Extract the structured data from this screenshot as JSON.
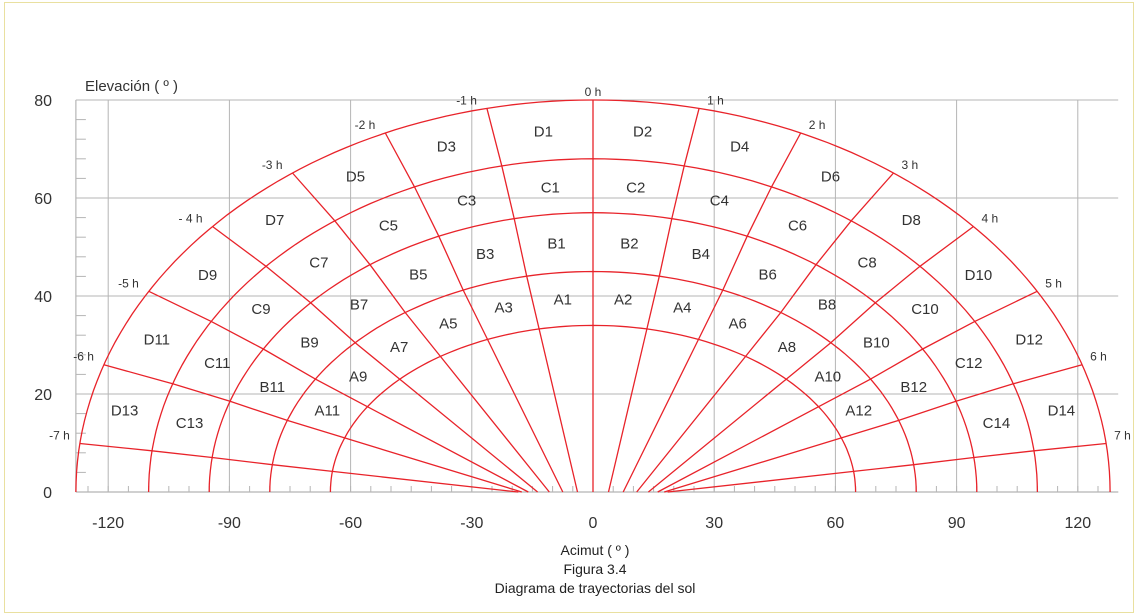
{
  "chart_data": {
    "type": "sun-path-diagram",
    "ylabel": "Elevación ( º )",
    "xlabel": "Acimut ( º )",
    "caption_figure": "Figura 3.4",
    "caption_title": "Diagrama de trayectorias del sol",
    "x_ticks": [
      "-120",
      "-90",
      "-60",
      "-30",
      "0",
      "30",
      "60",
      "90",
      "120"
    ],
    "y_ticks": [
      "0",
      "20",
      "40",
      "60",
      "80"
    ],
    "xlim": [
      -130,
      130
    ],
    "ylim": [
      0,
      80
    ],
    "grid": true,
    "arc_peaks_elevation": [
      34,
      45,
      57,
      68,
      80
    ],
    "arc_base_azimuth": [
      65,
      80,
      95,
      110,
      128
    ],
    "hour_labels": [
      "-7 h",
      "-6 h",
      "-5 h",
      "- 4 h",
      "-3 h",
      "-2 h",
      "-1 h",
      "0 h",
      "1 h",
      "2 h",
      "3 h",
      "4 h",
      "5 h",
      "6 h",
      "7 h"
    ],
    "hour_angles": [
      -7,
      -6,
      -5,
      -4,
      -3,
      -2,
      -1,
      0,
      1,
      2,
      3,
      4,
      5,
      6,
      7
    ],
    "cell_labels": {
      "A": [
        "A1",
        "A2",
        "A3",
        "A4",
        "A5",
        "A6",
        "A7",
        "A8",
        "A9",
        "A10",
        "A11",
        "A12"
      ],
      "B": [
        "B1",
        "B2",
        "B3",
        "B4",
        "B5",
        "B6",
        "B7",
        "B8",
        "B9",
        "B10",
        "B11",
        "B12"
      ],
      "C": [
        "C1",
        "C2",
        "C3",
        "C4",
        "C5",
        "C6",
        "C7",
        "C8",
        "C9",
        "C10",
        "C11",
        "C12",
        "C13",
        "C14"
      ],
      "D": [
        "D1",
        "D2",
        "D3",
        "D4",
        "D5",
        "D6",
        "D7",
        "D8",
        "D9",
        "D10",
        "D11",
        "D12",
        "D13",
        "D14"
      ]
    },
    "colors": {
      "curves": "#e8232a",
      "grid": "#b5b5b5",
      "frame": "#e9e0a0",
      "text": "#333333"
    }
  }
}
